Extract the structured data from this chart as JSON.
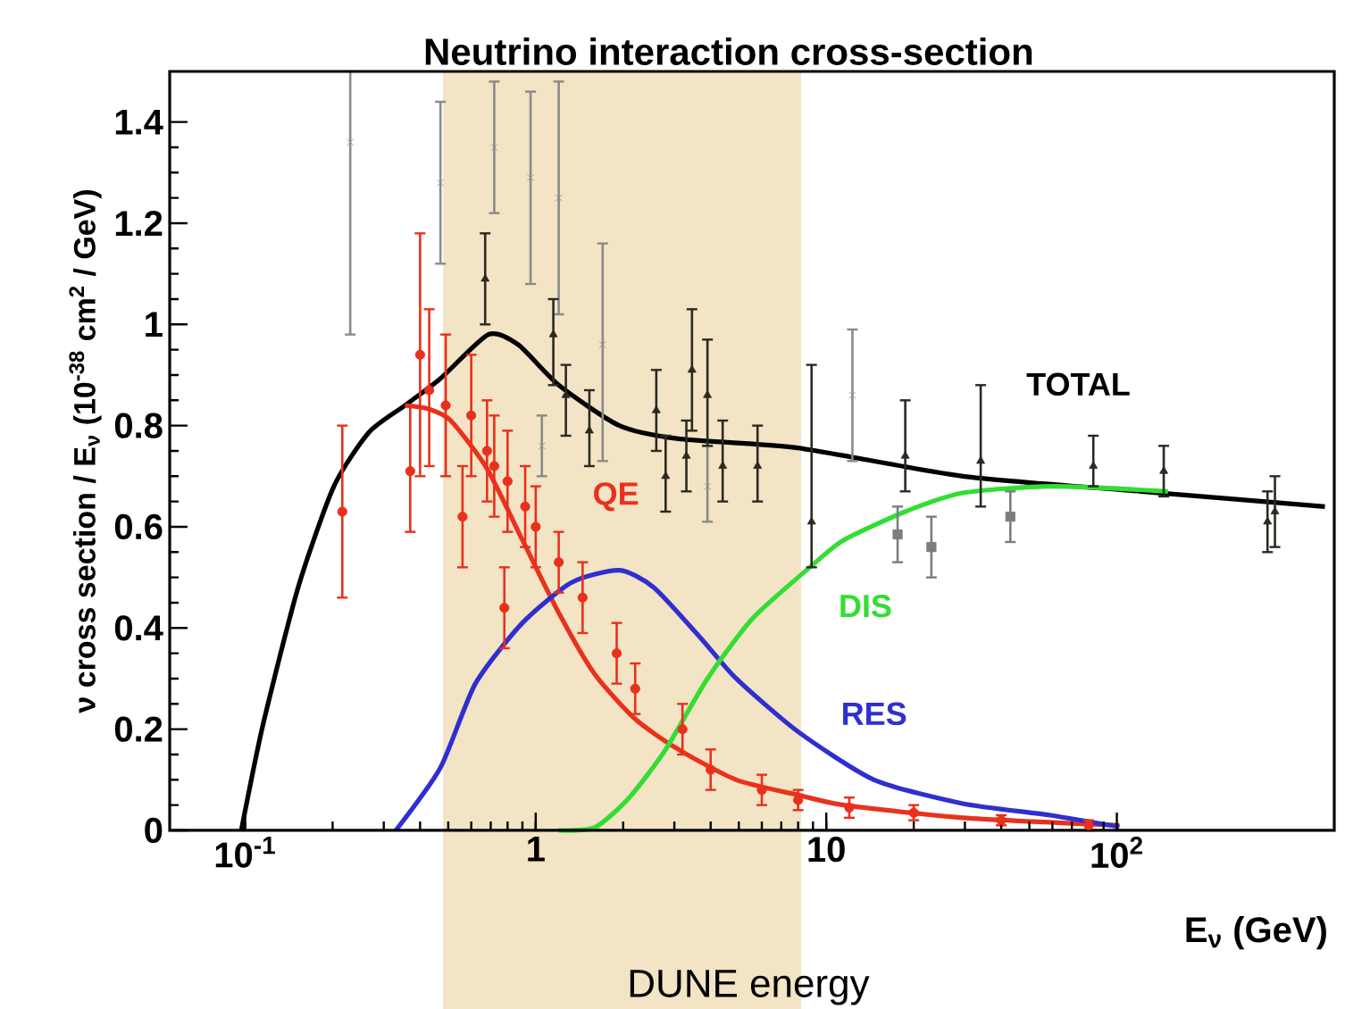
{
  "chart_data": {
    "type": "line",
    "title": "Neutrino interaction cross-section",
    "xlabel": "E$_{ν}$ (GeV)",
    "ylabel": "ν cross section / E$_{ν}$ (10$^{-38}$ cm$^{2}$ / GeV)",
    "log": "x",
    "xlim": [
      0.055,
      560
    ],
    "ylim": [
      0,
      1.5
    ],
    "xticks": [
      {
        "value": 0.1,
        "label": "10$^{-1}$"
      },
      1,
      10,
      {
        "value": 100,
        "label": "10$^{2}$"
      }
    ],
    "yticks": [
      0,
      0.2,
      0.4,
      0.6,
      0.8,
      1,
      1.2,
      1.4
    ],
    "bands": [
      {
        "axis": "x",
        "from": 0.48,
        "to": 8.2,
        "label": "DUNE energy",
        "color": "#f2e4c4"
      }
    ],
    "series": [
      {
        "name": "TOTAL",
        "color": "#000000",
        "x": [
          0.097,
          0.115,
          0.152,
          0.202,
          0.267,
          0.355,
          0.47,
          0.687,
          0.87,
          1.2,
          1.94,
          3.1,
          7.96,
          29.5,
          121,
          520
        ],
        "values": [
          0,
          0.207,
          0.479,
          0.68,
          0.787,
          0.84,
          0.893,
          0.98,
          0.96,
          0.88,
          0.8,
          0.774,
          0.756,
          0.7,
          0.67,
          0.64
        ]
      },
      {
        "name": "QE",
        "color": "#e8321e",
        "x": [
          0.355,
          0.428,
          0.51,
          0.68,
          0.9,
          1.2,
          1.59,
          2.2,
          3.1,
          4.9,
          8,
          11.5,
          29.5,
          102
        ],
        "values": [
          0.84,
          0.833,
          0.81,
          0.715,
          0.574,
          0.43,
          0.31,
          0.22,
          0.16,
          0.1,
          0.07,
          0.05,
          0.025,
          0.01
        ]
      },
      {
        "name": "RES",
        "color": "#2f2fd0",
        "x": [
          0.33,
          0.47,
          0.62,
          0.9,
          1.33,
          1.94,
          2.55,
          3.7,
          4.9,
          8,
          14.6,
          29.5,
          59,
          102
        ],
        "values": [
          0,
          0.124,
          0.29,
          0.41,
          0.49,
          0.514,
          0.48,
          0.38,
          0.3,
          0.195,
          0.1,
          0.053,
          0.03,
          0.007
        ]
      },
      {
        "name": "DIS",
        "color": "#33dd33",
        "x": [
          1.2,
          1.6,
          2.1,
          2.8,
          3.9,
          5.6,
          9.2,
          11.5,
          18.7,
          29.5,
          60,
          150
        ],
        "values": [
          0,
          0.006,
          0.065,
          0.16,
          0.3,
          0.42,
          0.53,
          0.574,
          0.63,
          0.667,
          0.68,
          0.67
        ]
      },
      {
        "type": "scatter",
        "marker": "circle",
        "color": "#e8301c",
        "x": [
          0.216,
          0.37,
          0.4,
          0.43,
          0.49,
          0.56,
          0.6,
          0.68,
          0.72,
          0.8,
          0.78,
          0.92,
          1.0,
          1.2,
          1.45,
          1.9,
          2.2,
          3.2,
          4,
          6,
          8,
          12,
          20,
          40,
          80
        ],
        "values": [
          0.63,
          0.71,
          0.94,
          0.87,
          0.84,
          0.62,
          0.82,
          0.75,
          0.72,
          0.69,
          0.44,
          0.64,
          0.6,
          0.53,
          0.46,
          0.35,
          0.28,
          0.2,
          0.12,
          0.08,
          0.06,
          0.045,
          0.035,
          0.02,
          0.01
        ],
        "errors": [
          [
            0.46,
            0.8
          ],
          [
            0.59,
            0.84
          ],
          [
            0.7,
            1.18
          ],
          [
            0.72,
            1.03
          ],
          [
            0.7,
            0.98
          ],
          [
            0.52,
            0.72
          ],
          [
            0.7,
            0.94
          ],
          [
            0.65,
            0.85
          ],
          [
            0.62,
            0.82
          ],
          [
            0.59,
            0.79
          ],
          [
            0.36,
            0.52
          ],
          [
            0.56,
            0.72
          ],
          [
            0.52,
            0.68
          ],
          [
            0.47,
            0.59
          ],
          [
            0.39,
            0.53
          ],
          [
            0.29,
            0.41
          ],
          [
            0.23,
            0.33
          ],
          [
            0.15,
            0.25
          ],
          [
            0.08,
            0.16
          ],
          [
            0.05,
            0.11
          ],
          [
            0.04,
            0.08
          ],
          [
            0.025,
            0.065
          ],
          [
            0.02,
            0.05
          ],
          [
            0.01,
            0.03
          ],
          [
            0,
            0.02
          ]
        ]
      },
      {
        "type": "scatter",
        "marker": "cross",
        "color": "#8a8a8a",
        "x": [
          0.23,
          0.47,
          0.72,
          0.96,
          1.2,
          1.7,
          1.05,
          3.9,
          12.3
        ],
        "values": [
          1.36,
          1.28,
          1.35,
          1.29,
          1.25,
          0.96,
          0.76,
          0.68,
          0.86
        ],
        "errors": [
          [
            0.98,
            1.5
          ],
          [
            1.12,
            1.44
          ],
          [
            1.22,
            1.48
          ],
          [
            1.08,
            1.46
          ],
          [
            1.02,
            1.48
          ],
          [
            0.73,
            1.16
          ],
          [
            0.7,
            0.82
          ],
          [
            0.61,
            0.76
          ],
          [
            0.73,
            0.99
          ]
        ]
      },
      {
        "type": "scatter",
        "marker": "triangle",
        "color": "#2b2a22",
        "x": [
          0.67,
          1.15,
          1.27,
          1.53,
          2.6,
          2.8,
          3.45,
          3.3,
          3.9,
          4.4,
          5.8,
          8.9,
          18.7,
          34,
          83,
          145,
          330,
          350
        ],
        "values": [
          1.09,
          0.98,
          0.86,
          0.79,
          0.83,
          0.7,
          0.91,
          0.74,
          0.86,
          0.72,
          0.72,
          0.61,
          0.74,
          0.73,
          0.72,
          0.71,
          0.61,
          0.63
        ],
        "errors": [
          [
            1.0,
            1.18
          ],
          [
            0.88,
            1.05
          ],
          [
            0.78,
            0.92
          ],
          [
            0.72,
            0.87
          ],
          [
            0.75,
            0.91
          ],
          [
            0.63,
            0.78
          ],
          [
            0.79,
            1.03
          ],
          [
            0.67,
            0.81
          ],
          [
            0.76,
            0.97
          ],
          [
            0.65,
            0.81
          ],
          [
            0.65,
            0.8
          ],
          [
            0.52,
            0.92
          ],
          [
            0.67,
            0.85
          ],
          [
            0.64,
            0.88
          ],
          [
            0.68,
            0.78
          ],
          [
            0.66,
            0.76
          ],
          [
            0.55,
            0.67
          ],
          [
            0.56,
            0.7
          ]
        ]
      },
      {
        "type": "scatter",
        "marker": "square",
        "color": "#7d7d7d",
        "x": [
          17.6,
          23,
          43
        ],
        "values": [
          0.585,
          0.56,
          0.62
        ],
        "errors": [
          [
            0.53,
            0.64
          ],
          [
            0.5,
            0.62
          ],
          [
            0.57,
            0.67
          ]
        ]
      }
    ]
  }
}
